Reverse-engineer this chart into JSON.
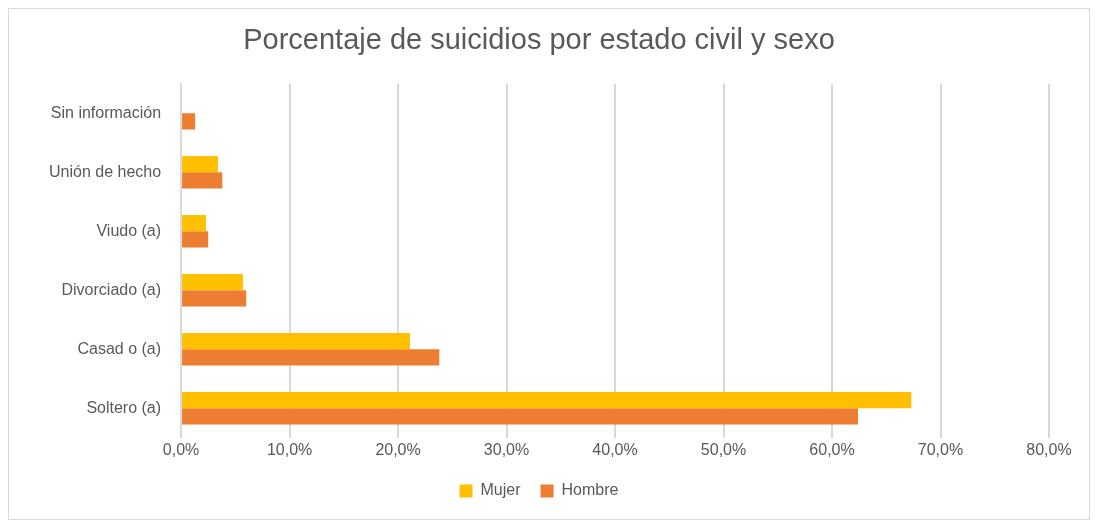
{
  "chart_data": {
    "type": "bar",
    "orientation": "horizontal",
    "title": "Porcentaje de suicidios por estado civil y sexo",
    "categories": [
      "Sin información",
      "Unión de hecho",
      "Viudo (a)",
      "Divorciado (a)",
      "Casad o (a)",
      "Soltero (a)"
    ],
    "series": [
      {
        "name": "Mujer",
        "color": "#ffc000",
        "values": [
          null,
          3.4,
          2.3,
          5.7,
          21.1,
          67.3
        ]
      },
      {
        "name": "Hombre",
        "color": "#ed7d31",
        "values": [
          1.3,
          3.8,
          2.5,
          6.0,
          23.8,
          62.4
        ]
      }
    ],
    "xlim": [
      0,
      80
    ],
    "xticks": [
      {
        "value": 0,
        "label": "0,0%"
      },
      {
        "value": 10,
        "label": "10,0%"
      },
      {
        "value": 20,
        "label": "20,0%"
      },
      {
        "value": 30,
        "label": "30,0%"
      },
      {
        "value": 40,
        "label": "40,0%"
      },
      {
        "value": 50,
        "label": "50,0%"
      },
      {
        "value": 60,
        "label": "60,0%"
      },
      {
        "value": 70,
        "label": "70,0%"
      },
      {
        "value": 80,
        "label": "80,0%"
      }
    ],
    "grid": "x",
    "legend": "bottom"
  }
}
